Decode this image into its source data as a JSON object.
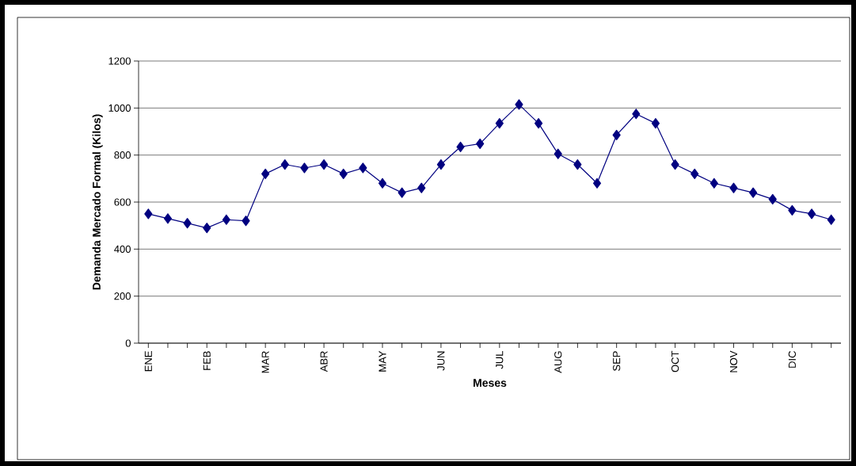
{
  "chart_data": {
    "type": "line",
    "xlabel": "Meses",
    "ylabel": "Demanda Mercado Formal (Kilos)",
    "categories": [
      "ENE",
      null,
      null,
      "FEB",
      null,
      null,
      "MAR",
      null,
      null,
      "ABR",
      null,
      null,
      "MAY",
      null,
      null,
      "JUN",
      null,
      null,
      "JUL",
      null,
      null,
      "AUG",
      null,
      null,
      "SEP",
      null,
      null,
      "OCT",
      null,
      null,
      "NOV",
      null,
      null,
      "DIC",
      null,
      null
    ],
    "values": [
      550,
      530,
      510,
      490,
      525,
      520,
      720,
      760,
      745,
      760,
      720,
      745,
      680,
      640,
      660,
      760,
      835,
      848,
      935,
      1015,
      935,
      805,
      760,
      680,
      885,
      975,
      935,
      760,
      720,
      680,
      660,
      640,
      612,
      565,
      550,
      525
    ],
    "color": "#000080",
    "marker": "diamond",
    "line_style": "solid",
    "ylim": [
      0,
      1200
    ],
    "yticks": [
      0,
      200,
      400,
      600,
      800,
      1000,
      1200
    ],
    "grid": "y"
  }
}
